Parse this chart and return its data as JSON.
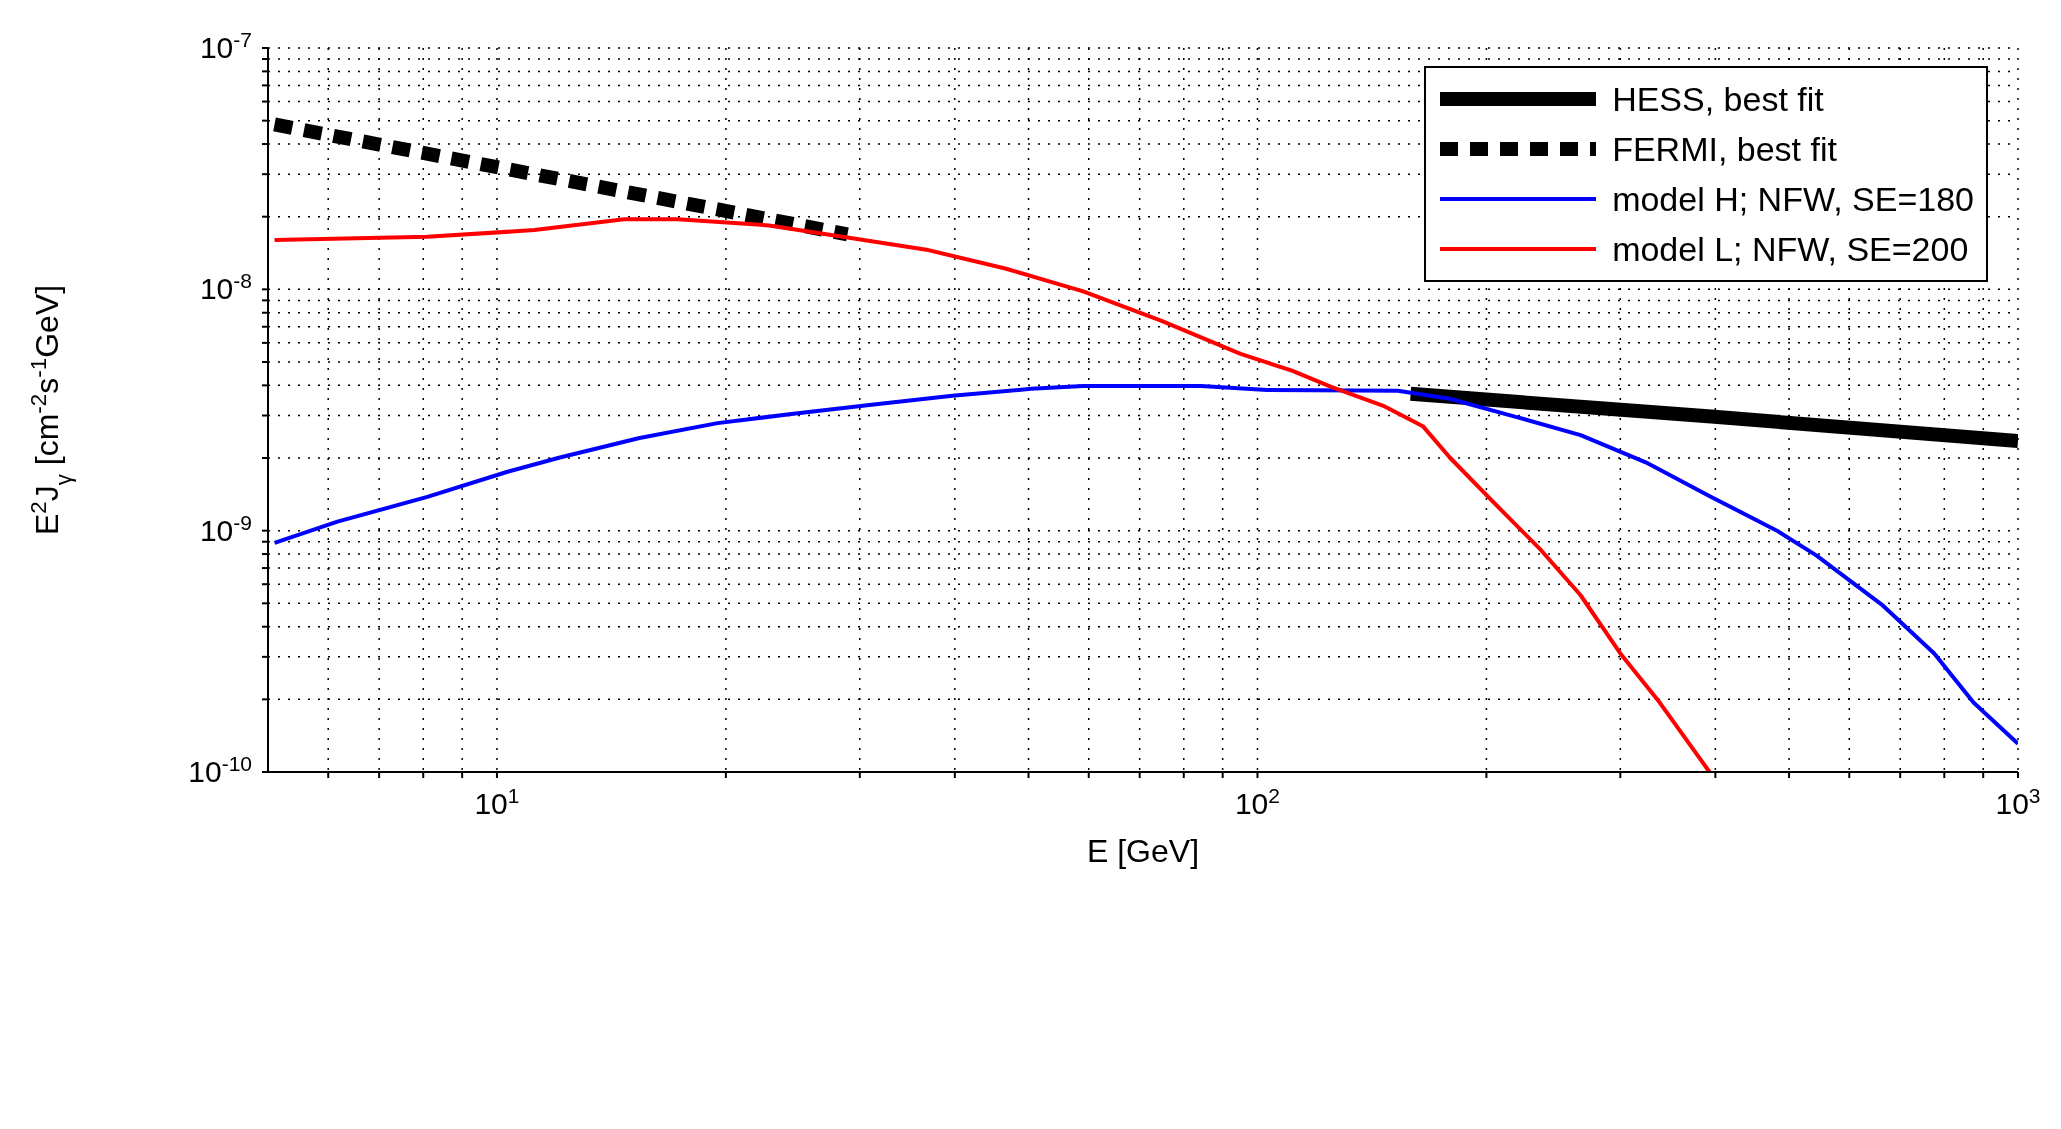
{
  "chart_data": {
    "type": "line",
    "xlabel": "E [GeV]",
    "ylabel": "E$^{2}$J$_{γ}$ [cm$^{-2}$s$^{-1}$GeV]",
    "log": "xy",
    "grid": true,
    "legend": "top right",
    "marker": "none",
    "xlim": [
      5,
      1000
    ],
    "xticks": [
      {
        "value": 6,
        "label": null
      },
      {
        "value": 7,
        "label": null
      },
      {
        "value": 8,
        "label": null
      },
      {
        "value": 9,
        "label": null
      },
      {
        "value": 10,
        "label": "10$^{1}$"
      },
      {
        "value": 20,
        "label": null
      },
      {
        "value": 30,
        "label": null
      },
      {
        "value": 40,
        "label": null
      },
      {
        "value": 50,
        "label": null
      },
      {
        "value": 60,
        "label": null
      },
      {
        "value": 70,
        "label": null
      },
      {
        "value": 80,
        "label": null
      },
      {
        "value": 90,
        "label": null
      },
      {
        "value": 100,
        "label": "10$^{2}$"
      },
      {
        "value": 200,
        "label": null
      },
      {
        "value": 300,
        "label": null
      },
      {
        "value": 400,
        "label": null
      },
      {
        "value": 500,
        "label": null
      },
      {
        "value": 600,
        "label": null
      },
      {
        "value": 700,
        "label": null
      },
      {
        "value": 800,
        "label": null
      },
      {
        "value": 900,
        "label": null
      },
      {
        "value": 1000,
        "label": "10$^{3}$"
      }
    ],
    "ylim": [
      1e-10,
      1e-07
    ],
    "yticks": [
      {
        "value": 1e-10,
        "label": "10$^{-10}$"
      },
      {
        "value": 2e-10,
        "label": null
      },
      {
        "value": 3e-10,
        "label": null
      },
      {
        "value": 4e-10,
        "label": null
      },
      {
        "value": 5e-10,
        "label": null
      },
      {
        "value": 6e-10,
        "label": null
      },
      {
        "value": 7e-10,
        "label": null
      },
      {
        "value": 8e-10,
        "label": null
      },
      {
        "value": 9e-10,
        "label": null
      },
      {
        "value": 1e-09,
        "label": "10$^{-9}$"
      },
      {
        "value": 2e-09,
        "label": null
      },
      {
        "value": 3e-09,
        "label": null
      },
      {
        "value": 4e-09,
        "label": null
      },
      {
        "value": 5e-09,
        "label": null
      },
      {
        "value": 6e-09,
        "label": null
      },
      {
        "value": 7e-09,
        "label": null
      },
      {
        "value": 8e-09,
        "label": null
      },
      {
        "value": 9e-09,
        "label": null
      },
      {
        "value": 1e-08,
        "label": "10$^{-8}$"
      },
      {
        "value": 2e-08,
        "label": null
      },
      {
        "value": 3e-08,
        "label": null
      },
      {
        "value": 4e-08,
        "label": null
      },
      {
        "value": 5e-08,
        "label": null
      },
      {
        "value": 6e-08,
        "label": null
      },
      {
        "value": 7e-08,
        "label": null
      },
      {
        "value": 8e-08,
        "label": null
      },
      {
        "value": 9e-08,
        "label": null
      },
      {
        "value": 1e-07,
        "label": "10$^{-7}$"
      }
    ],
    "series": [
      {
        "name": "HESS, best fit",
        "color": "#000000",
        "line_style": "solid",
        "x": [
          159,
          395,
          1000
        ],
        "values": [
          3.69e-09,
          2.97e-09,
          2.35e-09
        ]
      },
      {
        "name": "FERMI, best fit",
        "color": "#000000",
        "line_style": "dashed",
        "x": [
          5.1,
          28.9
        ],
        "values": [
          4.82e-08,
          1.69e-08
        ]
      },
      {
        "name": "model H; NFW, SE=180",
        "color": "#0000ff",
        "line_style": "solid",
        "x": [
          5.1,
          6.17,
          8.1,
          10.3,
          12.1,
          15.4,
          19.5,
          24.7,
          31.3,
          39.7,
          50.4,
          59,
          84.3,
          103,
          153,
          179,
          218,
          266,
          324,
          395,
          482,
          543,
          662,
          776,
          874,
          1000
        ],
        "values": [
          8.9e-10,
          1.09e-09,
          1.38e-09,
          1.75e-09,
          2.01e-09,
          2.42e-09,
          2.79e-09,
          3.06e-09,
          3.33e-09,
          3.62e-09,
          3.87e-09,
          3.98e-09,
          3.98e-09,
          3.83e-09,
          3.8e-09,
          3.52e-09,
          2.97e-09,
          2.49e-09,
          1.92e-09,
          1.38e-09,
          1e-09,
          7.9e-10,
          4.94e-10,
          3.1e-10,
          1.94e-10,
          1.31e-10
        ]
      },
      {
        "name": "model L; NFW, SE=200",
        "color": "#ff0000",
        "line_style": "solid",
        "x": [
          5.1,
          8.1,
          11.2,
          14.7,
          17.3,
          22.8,
          28.9,
          36.7,
          46.6,
          59,
          74.8,
          95,
          111,
          125,
          147,
          165,
          179,
          202,
          236,
          266,
          300,
          338,
          393
        ],
        "values": [
          1.6e-08,
          1.65e-08,
          1.76e-08,
          1.95e-08,
          1.95e-08,
          1.84e-08,
          1.64e-08,
          1.46e-08,
          1.22e-08,
          9.8e-09,
          7.4e-09,
          5.4e-09,
          4.6e-09,
          3.94e-09,
          3.27e-09,
          2.71e-09,
          2.01e-09,
          1.36e-09,
          8.3e-10,
          5.4e-10,
          3.1e-10,
          1.94e-10,
          1e-10
        ]
      }
    ]
  }
}
